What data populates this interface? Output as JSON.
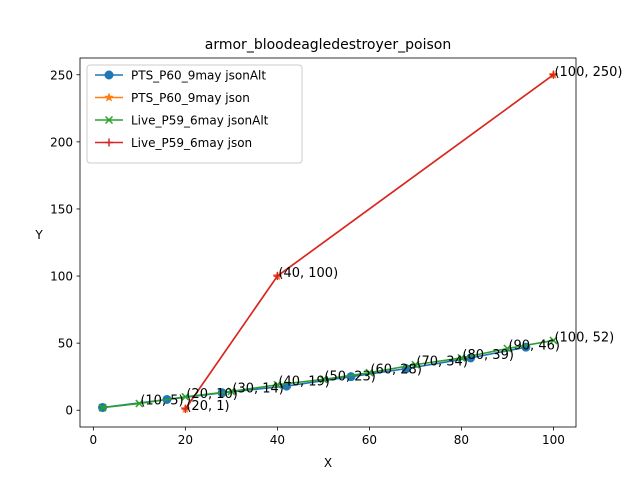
{
  "chart_data": {
    "type": "line",
    "title": "armor_bloodeagledestroyer_poison",
    "xlabel": "X",
    "ylabel": "Y",
    "xlim": [
      -2.9,
      104.9
    ],
    "ylim": [
      -12.5,
      262.5
    ],
    "xticks": [
      0,
      20,
      40,
      60,
      80,
      100
    ],
    "yticks": [
      0,
      50,
      100,
      150,
      200,
      250
    ],
    "grid": false,
    "legend_position": "top-left",
    "series": [
      {
        "name": "PTS_P60_9may jsonAlt",
        "color": "#1f77b4",
        "marker": "circle",
        "x": [
          2,
          16,
          28,
          42,
          56,
          68,
          82,
          94
        ],
        "y": [
          2,
          8,
          13,
          18,
          25,
          31,
          39,
          47
        ]
      },
      {
        "name": "PTS_P60_9may json",
        "color": "#ff7f0e",
        "marker": "star",
        "x": [
          20,
          40,
          100
        ],
        "y": [
          1,
          100,
          250
        ]
      },
      {
        "name": "Live_P59_6may jsonAlt",
        "color": "#2ca02c",
        "marker": "x",
        "x": [
          2,
          10,
          20,
          30,
          40,
          50,
          60,
          70,
          80,
          90,
          100
        ],
        "y": [
          2,
          5,
          10,
          14,
          19,
          23,
          28,
          34,
          39,
          46,
          52
        ]
      },
      {
        "name": "Live_P59_6may json",
        "color": "#d62728",
        "marker": "plus",
        "x": [
          20,
          40,
          100
        ],
        "y": [
          1,
          100,
          250
        ]
      }
    ],
    "annotations": [
      {
        "text": "(10, 5)",
        "x": 10,
        "y": 5
      },
      {
        "text": "(20, 10)",
        "x": 20,
        "y": 10
      },
      {
        "text": "(20, 1)",
        "x": 20,
        "y": 1
      },
      {
        "text": "(30, 14)",
        "x": 30,
        "y": 14
      },
      {
        "text": "(40, 19)",
        "x": 40,
        "y": 19
      },
      {
        "text": "(40, 100)",
        "x": 40,
        "y": 100
      },
      {
        "text": "(50, 23)",
        "x": 50,
        "y": 23
      },
      {
        "text": "(60, 28)",
        "x": 60,
        "y": 28
      },
      {
        "text": "(70, 34)",
        "x": 70,
        "y": 34
      },
      {
        "text": "(80, 39)",
        "x": 80,
        "y": 39
      },
      {
        "text": "(90, 46)",
        "x": 90,
        "y": 46
      },
      {
        "text": "(100, 52)",
        "x": 100,
        "y": 52
      },
      {
        "text": "(100, 250)",
        "x": 100,
        "y": 250
      }
    ]
  }
}
